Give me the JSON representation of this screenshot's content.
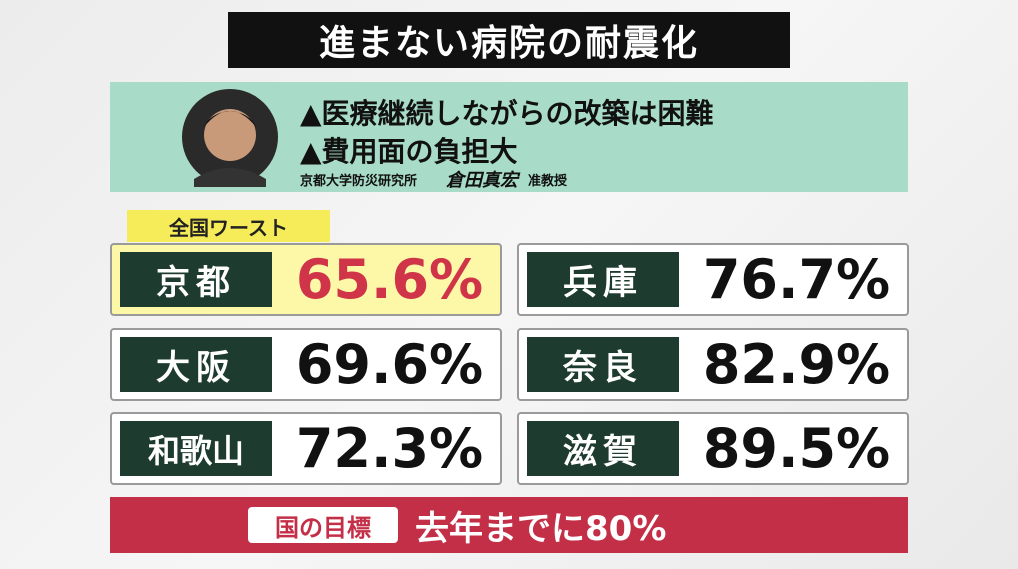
{
  "header": {
    "title": "進まない病院の耐震化"
  },
  "expert": {
    "points": [
      "▲医療継続しながらの改築は困難",
      "▲費用面の負担大"
    ],
    "affiliation": "京都大学防災研究所",
    "name": "倉田真宏",
    "position": "准教授"
  },
  "badge": "全国ワースト",
  "prefectures": [
    {
      "name": "京都",
      "value": "65.6%"
    },
    {
      "name": "兵庫",
      "value": "76.7%"
    },
    {
      "name": "大阪",
      "value": "69.6%"
    },
    {
      "name": "奈良",
      "value": "82.9%"
    },
    {
      "name": "和歌山",
      "value": "72.3%"
    },
    {
      "name": "滋賀",
      "value": "89.5%"
    }
  ],
  "target": {
    "label": "国の目標",
    "text": "去年までに80%"
  }
}
